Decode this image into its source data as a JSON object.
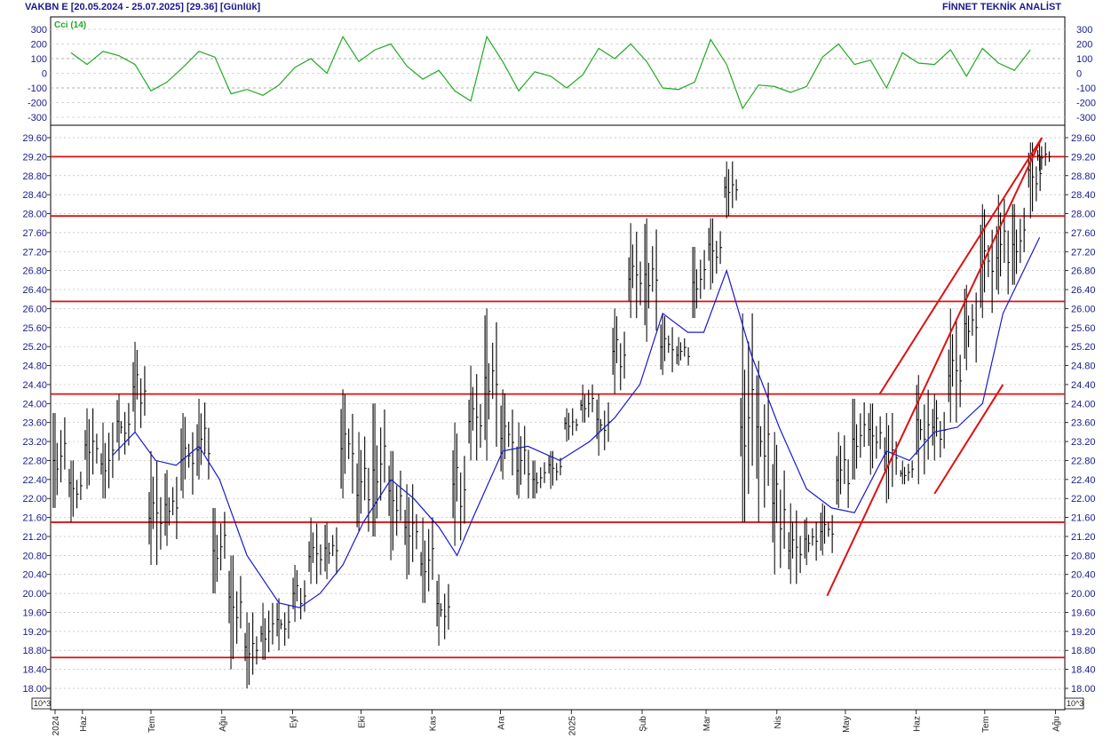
{
  "header": {
    "left": "VAKBN E  [20.05.2024 - 25.07.2025]  [29.36]  [Günlük]",
    "right": "FİNNET TEKNİK ANALİST"
  },
  "colors": {
    "price_bars": "#000000",
    "moving_average": "#1a1acc",
    "support_resistance": "#dd1111",
    "trend_lines": "#dd1111",
    "cci": "#22aa22",
    "axis_text": "#1a1a8c",
    "grid": "#bbbbbb"
  },
  "chart_data": [
    {
      "type": "line",
      "panel": "indicator",
      "legend": "Cci (14)",
      "ylim": [
        -300,
        300
      ],
      "yticks": [
        300,
        200,
        100,
        0,
        -100,
        -200,
        -300
      ],
      "reference_lines": [
        100,
        -100
      ],
      "x": [
        "2024-05-27",
        "2024-06-03",
        "2024-06-10",
        "2024-06-17",
        "2024-06-24",
        "2024-07-01",
        "2024-07-08",
        "2024-07-15",
        "2024-07-22",
        "2024-07-29",
        "2024-08-05",
        "2024-08-12",
        "2024-08-19",
        "2024-08-26",
        "2024-09-02",
        "2024-09-09",
        "2024-09-16",
        "2024-09-23",
        "2024-09-30",
        "2024-10-07",
        "2024-10-14",
        "2024-10-21",
        "2024-10-28",
        "2024-11-04",
        "2024-11-11",
        "2024-11-18",
        "2024-11-25",
        "2024-12-02",
        "2024-12-09",
        "2024-12-16",
        "2024-12-23",
        "2024-12-30",
        "2025-01-06",
        "2025-01-13",
        "2025-01-20",
        "2025-01-27",
        "2025-02-03",
        "2025-02-10",
        "2025-02-17",
        "2025-02-24",
        "2025-03-03",
        "2025-03-10",
        "2025-03-17",
        "2025-03-24",
        "2025-03-31",
        "2025-04-07",
        "2025-04-14",
        "2025-04-21",
        "2025-04-28",
        "2025-05-05",
        "2025-05-12",
        "2025-05-19",
        "2025-05-26",
        "2025-06-02",
        "2025-06-09",
        "2025-06-16",
        "2025-06-23",
        "2025-06-30",
        "2025-07-07",
        "2025-07-14",
        "2025-07-21"
      ],
      "series": [
        {
          "values": [
            140,
            60,
            150,
            120,
            60,
            -120,
            -60,
            40,
            150,
            110,
            -140,
            -110,
            -150,
            -80,
            40,
            100,
            0,
            250,
            80,
            160,
            200,
            50,
            -40,
            20,
            -120,
            -190,
            250,
            80,
            -120,
            10,
            -20,
            -100,
            -10,
            170,
            100,
            200,
            80,
            -100,
            -110,
            -60,
            230,
            60,
            -240,
            -80,
            -90,
            -130,
            -90,
            110,
            200,
            60,
            90,
            -100,
            140,
            70,
            60,
            160,
            -20,
            170,
            70,
            20,
            160
          ]
        }
      ]
    },
    {
      "type": "bar",
      "panel": "price",
      "bar_style": "high-low",
      "ylim": [
        17.8,
        29.8
      ],
      "yticks": [
        29.6,
        29.2,
        28.8,
        28.4,
        28.0,
        27.6,
        27.2,
        26.8,
        26.4,
        26.0,
        25.6,
        25.2,
        24.8,
        24.4,
        24.0,
        23.6,
        23.2,
        22.8,
        22.4,
        22.0,
        21.6,
        21.2,
        20.8,
        20.4,
        20.0,
        19.6,
        19.2,
        18.8,
        18.4,
        18.0
      ],
      "ytick_labels": [
        "29.60",
        "29.20",
        "28.80",
        "28.40",
        "28.00",
        "27.60",
        "27.20",
        "26.80",
        "26.40",
        "26.00",
        "25.60",
        "25.20",
        "24.80",
        "24.40",
        "24.00",
        "23.60",
        "23.20",
        "22.80",
        "22.40",
        "22.00",
        "21.60",
        "21.20",
        "20.80",
        "20.40",
        "20.00",
        "19.60",
        "19.20",
        "18.80",
        "18.40",
        "18.00"
      ],
      "unit_label": "10^3",
      "x": [
        "2024-05-20",
        "2024-05-27",
        "2024-06-03",
        "2024-06-10",
        "2024-06-17",
        "2024-06-24",
        "2024-07-01",
        "2024-07-08",
        "2024-07-15",
        "2024-07-22",
        "2024-07-29",
        "2024-08-05",
        "2024-08-12",
        "2024-08-19",
        "2024-08-26",
        "2024-09-02",
        "2024-09-09",
        "2024-09-16",
        "2024-09-23",
        "2024-09-30",
        "2024-10-07",
        "2024-10-14",
        "2024-10-21",
        "2024-10-28",
        "2024-11-04",
        "2024-11-11",
        "2024-11-18",
        "2024-11-25",
        "2024-12-02",
        "2024-12-09",
        "2024-12-16",
        "2024-12-23",
        "2024-12-30",
        "2025-01-06",
        "2025-01-13",
        "2025-01-20",
        "2025-01-27",
        "2025-02-03",
        "2025-02-10",
        "2025-02-17",
        "2025-02-24",
        "2025-03-03",
        "2025-03-10",
        "2025-03-17",
        "2025-03-24",
        "2025-03-31",
        "2025-04-07",
        "2025-04-14",
        "2025-04-21",
        "2025-04-28",
        "2025-05-05",
        "2025-05-12",
        "2025-05-19",
        "2025-05-26",
        "2025-06-02",
        "2025-06-09",
        "2025-06-16",
        "2025-06-23",
        "2025-06-30",
        "2025-07-07",
        "2025-07-14",
        "2025-07-21",
        "2025-07-25"
      ],
      "series": [
        {
          "name": "high",
          "values": [
            23.8,
            22.8,
            23.9,
            23.6,
            24.2,
            25.3,
            23.0,
            22.6,
            23.8,
            24.1,
            21.8,
            20.8,
            19.6,
            19.8,
            19.9,
            20.6,
            21.6,
            21.5,
            24.3,
            23.4,
            24.0,
            23.0,
            22.3,
            21.6,
            20.4,
            23.6,
            24.8,
            26.0,
            24.3,
            23.6,
            22.8,
            23.0,
            23.9,
            24.4,
            24.2,
            26.0,
            27.8,
            27.9,
            25.9,
            25.4,
            27.3,
            27.9,
            29.1,
            25.9,
            24.9,
            23.4,
            21.9,
            21.6,
            21.9,
            23.4,
            24.1,
            24.0,
            23.8,
            22.8,
            24.6,
            24.2,
            26.0,
            26.5,
            28.2,
            28.4,
            28.2,
            29.5,
            29.5
          ]
        },
        {
          "name": "low",
          "values": [
            21.8,
            21.5,
            22.2,
            22.0,
            22.8,
            23.4,
            20.6,
            21.0,
            22.0,
            22.4,
            20.0,
            18.4,
            18.0,
            18.6,
            18.8,
            19.4,
            20.2,
            20.3,
            22.0,
            21.3,
            21.2,
            20.7,
            20.3,
            19.8,
            18.9,
            21.0,
            22.8,
            22.8,
            22.4,
            22.0,
            22.0,
            22.2,
            23.2,
            23.6,
            22.9,
            24.2,
            25.8,
            25.3,
            24.6,
            24.8,
            25.8,
            26.4,
            27.9,
            21.5,
            21.5,
            20.4,
            20.2,
            20.6,
            20.8,
            21.8,
            22.4,
            22.5,
            21.9,
            22.3,
            22.3,
            22.8,
            23.6,
            24.7,
            25.8,
            26.3,
            26.5,
            27.9,
            28.9
          ]
        }
      ],
      "moving_average": {
        "name": "MA",
        "x": [
          "2024-06-14",
          "2024-06-24",
          "2024-07-03",
          "2024-07-12",
          "2024-07-22",
          "2024-07-31",
          "2024-08-12",
          "2024-08-26",
          "2024-09-04",
          "2024-09-13",
          "2024-09-23",
          "2024-10-02",
          "2024-10-14",
          "2024-10-24",
          "2024-11-04",
          "2024-11-12",
          "2024-11-19",
          "2024-12-02",
          "2024-12-13",
          "2024-12-27",
          "2025-01-09",
          "2025-01-20",
          "2025-01-31",
          "2025-02-10",
          "2025-02-21",
          "2025-02-28",
          "2025-03-10",
          "2025-03-21",
          "2025-04-02",
          "2025-04-14",
          "2025-04-25",
          "2025-05-05",
          "2025-05-19",
          "2025-05-29",
          "2025-06-09",
          "2025-06-19",
          "2025-06-30",
          "2025-07-09",
          "2025-07-25"
        ],
        "values": [
          22.9,
          23.4,
          22.8,
          22.7,
          23.1,
          22.4,
          20.8,
          19.8,
          19.7,
          20.0,
          20.6,
          21.5,
          22.4,
          22.0,
          21.4,
          20.8,
          21.6,
          23.0,
          23.1,
          22.8,
          23.2,
          23.7,
          24.4,
          25.9,
          25.5,
          25.5,
          26.8,
          25.0,
          23.5,
          22.2,
          21.8,
          21.7,
          23.0,
          22.8,
          23.4,
          23.5,
          24.0,
          25.9,
          27.5
        ]
      },
      "horizontal_levels": [
        29.2,
        27.95,
        26.15,
        24.2,
        21.5,
        18.65
      ],
      "trend_lines": [
        {
          "x": [
            "2025-04-23",
            "2025-07-26"
          ],
          "y": [
            19.95,
            29.6
          ]
        },
        {
          "x": [
            "2025-05-16",
            "2025-07-26"
          ],
          "y": [
            24.2,
            29.6
          ]
        },
        {
          "x": [
            "2025-06-09",
            "2025-07-09"
          ],
          "y": [
            22.1,
            24.4
          ]
        }
      ]
    }
  ],
  "x_axis": {
    "labels": [
      "2024",
      "Haz",
      "Tem",
      "Ağu",
      "Eyl",
      "Eki",
      "Kas",
      "Ara",
      "2025",
      "Şub",
      "Mar",
      "Nis",
      "May",
      "Haz",
      "Tem",
      "Ağu"
    ],
    "dates": [
      "2024-05-20",
      "2024-06-01",
      "2024-07-01",
      "2024-08-01",
      "2024-09-01",
      "2024-10-01",
      "2024-11-01",
      "2024-12-01",
      "2025-01-01",
      "2025-02-01",
      "2025-03-01",
      "2025-04-01",
      "2025-05-01",
      "2025-06-01",
      "2025-07-01",
      "2025-08-01"
    ]
  },
  "unit_labels": [
    "10^3",
    "10^3"
  ]
}
